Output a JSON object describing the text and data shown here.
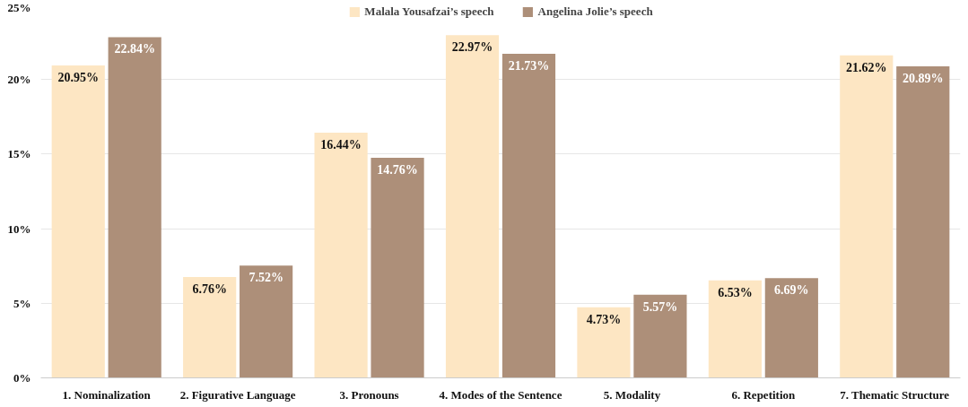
{
  "chart_data": {
    "type": "bar",
    "categories": [
      "1. Nominalization",
      "2. Figurative Language",
      "3. Pronouns",
      "4. Modes of the Sentence",
      "5. Modality",
      "6. Repetition",
      "7. Thematic Structure"
    ],
    "series": [
      {
        "name": "Malala Yousafzai’s speech",
        "color": "#fde6c3",
        "values": [
          20.95,
          6.76,
          16.44,
          22.97,
          4.73,
          6.53,
          21.62
        ],
        "value_labels": [
          "20.95%",
          "6.76%",
          "16.44%",
          "22.97%",
          "4.73%",
          "6.53%",
          "21.62%"
        ]
      },
      {
        "name": "Angelina Jolie’s speech",
        "color": "#ad8f79",
        "values": [
          22.84,
          7.52,
          14.76,
          21.73,
          5.57,
          6.69,
          20.89
        ],
        "value_labels": [
          "22.84%",
          "7.52%",
          "14.76%",
          "21.73%",
          "5.57%",
          "6.69%",
          "20.89%"
        ]
      }
    ],
    "ylim": [
      0,
      25
    ],
    "yticks": [
      {
        "value": 0,
        "label": "0%"
      },
      {
        "value": 5,
        "label": "5%"
      },
      {
        "value": 10,
        "label": "10%"
      },
      {
        "value": 15,
        "label": "15%"
      },
      {
        "value": 20,
        "label": "20%"
      },
      {
        "value": 25,
        "label": "25%"
      }
    ],
    "grid": "y",
    "legend": "top"
  }
}
